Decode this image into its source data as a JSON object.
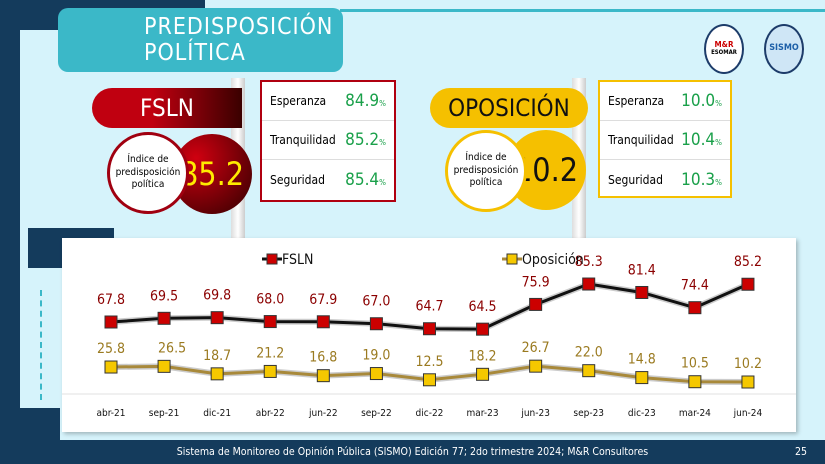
{
  "header": {
    "title": "PREDISPOSICIÓN POLÍTICA",
    "logos": [
      "M&R Consultores ESOMAR member",
      "SISMO"
    ]
  },
  "fsln": {
    "name": "FSLN",
    "index_label": "Índice de predisposición política",
    "index_value": "85.2",
    "color": "#b00010",
    "stats": [
      {
        "label": "Esperanza",
        "value": "84.9",
        "unit": "%"
      },
      {
        "label": "Tranquilidad",
        "value": "85.2",
        "unit": "%"
      },
      {
        "label": "Seguridad",
        "value": "85.4",
        "unit": "%"
      }
    ]
  },
  "oposicion": {
    "name": "OPOSICIÓN",
    "index_label": "Índice de predisposición política",
    "index_value": "10.2",
    "color": "#f5c000",
    "stats": [
      {
        "label": "Esperanza",
        "value": "10.0",
        "unit": "%"
      },
      {
        "label": "Tranquilidad",
        "value": "10.4",
        "unit": "%"
      },
      {
        "label": "Seguridad",
        "value": "10.3",
        "unit": "%"
      }
    ]
  },
  "chart_data": {
    "type": "line",
    "categories": [
      "abr-21",
      "sep-21",
      "dic-21",
      "abr-22",
      "jun-22",
      "sep-22",
      "dic-22",
      "mar-23",
      "jun-23",
      "sep-23",
      "dic-23",
      "mar-24",
      "jun-24"
    ],
    "series": [
      {
        "name": "FSLN",
        "color": "#c00000",
        "values": [
          67.8,
          69.5,
          69.8,
          68.0,
          67.9,
          67.0,
          64.7,
          64.5,
          75.9,
          85.3,
          81.4,
          74.4,
          85.2
        ]
      },
      {
        "name": "Oposición",
        "color": "#f5c000",
        "values": [
          25.8,
          26.5,
          18.7,
          21.2,
          16.8,
          19.0,
          12.5,
          18.2,
          26.7,
          22.0,
          14.8,
          10.5,
          10.2
        ]
      }
    ],
    "legend": "top",
    "grid": false
  },
  "footer": {
    "text": "Sistema de Monitoreo de Opinión Pública (SISMO) Edición 77; 2do trimestre 2024; M&R Consultores",
    "page": "25"
  }
}
